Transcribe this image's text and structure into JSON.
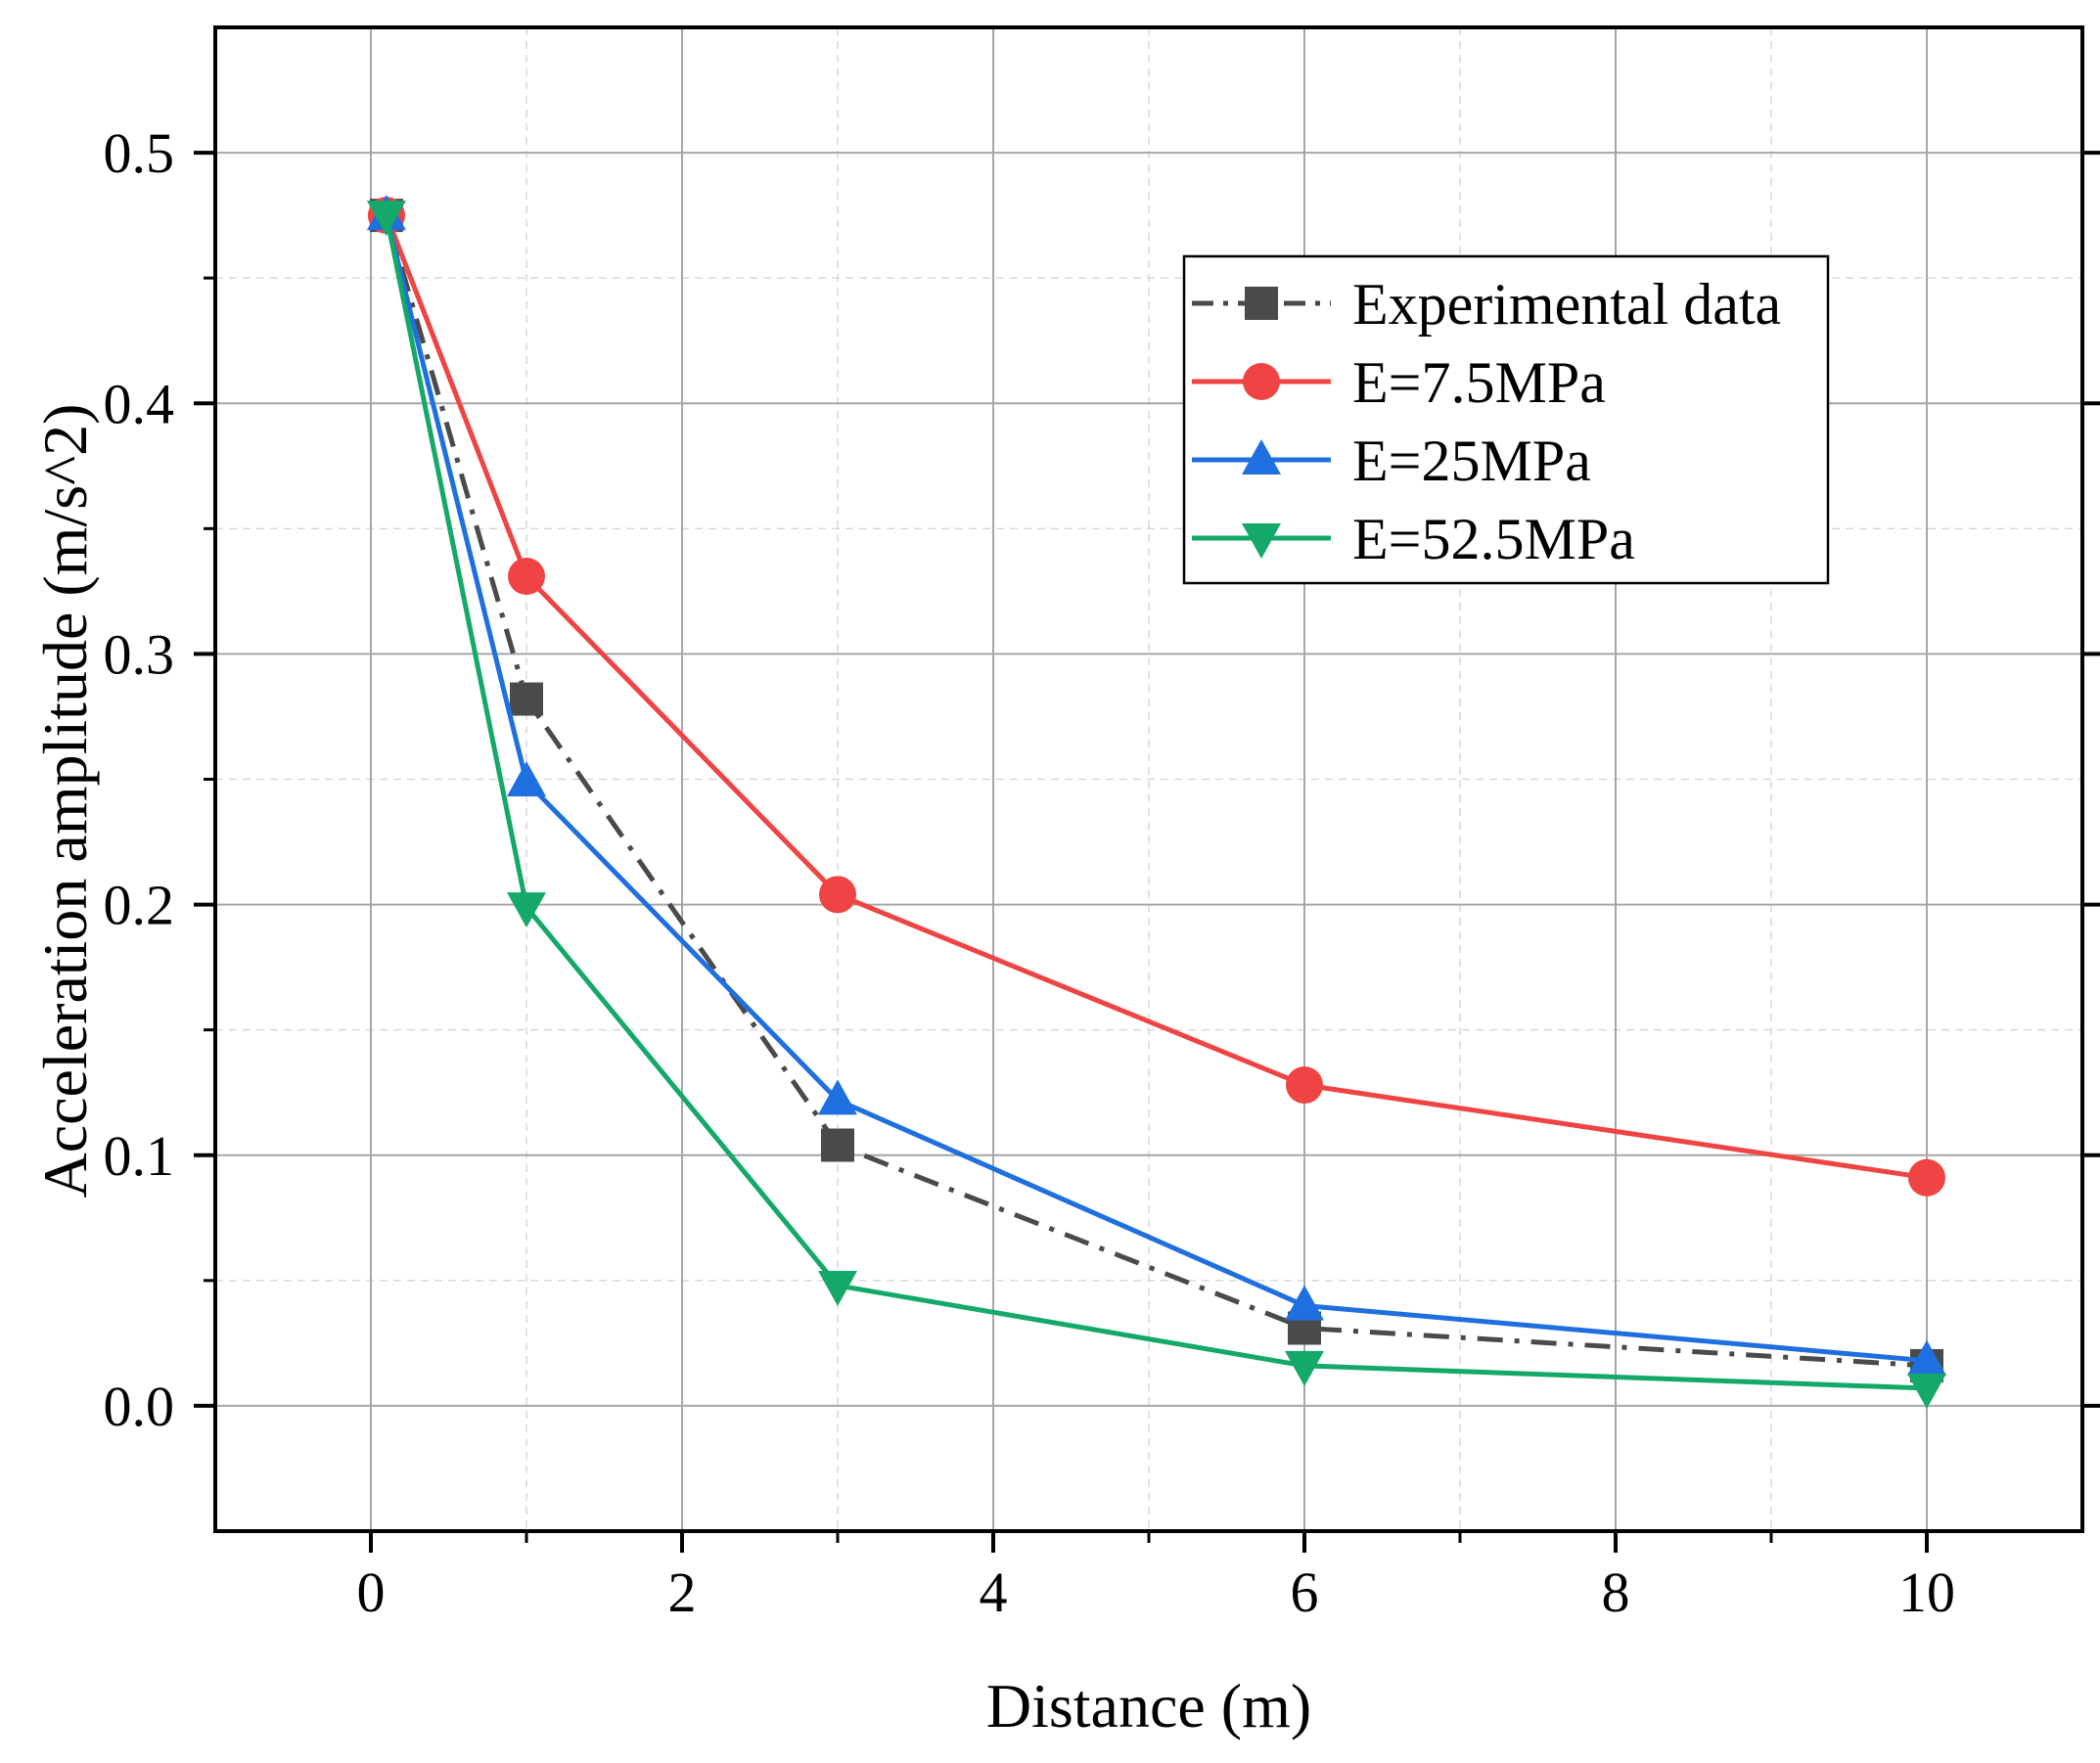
{
  "chart_data": {
    "type": "line",
    "title": "",
    "xlabel": "Distance (m)",
    "ylabel": "Acceleration amplitude (m/s^2)",
    "xlim": [
      -1,
      11
    ],
    "ylim": [
      -0.05,
      0.55
    ],
    "xticks": [
      0,
      2,
      4,
      6,
      8,
      10
    ],
    "xtick_labels": [
      "0",
      "2",
      "4",
      "6",
      "8",
      "10"
    ],
    "yticks": [
      0.0,
      0.1,
      0.2,
      0.3,
      0.4,
      0.5
    ],
    "ytick_labels": [
      "0.0",
      "0.1",
      "0.2",
      "0.3",
      "0.4",
      "0.5"
    ],
    "grid": true,
    "legend_position": "top-right",
    "series": [
      {
        "name": "Experimental data",
        "x": [
          0.1,
          1,
          3,
          6,
          10
        ],
        "y": [
          0.475,
          0.282,
          0.104,
          0.031,
          0.016
        ],
        "color": "#4a4a4a",
        "marker": "square",
        "line": "dashdot"
      },
      {
        "name": "E=7.5MPa",
        "x": [
          0.1,
          1,
          3,
          6,
          10
        ],
        "y": [
          0.475,
          0.331,
          0.204,
          0.128,
          0.091
        ],
        "color": "#f04343",
        "marker": "circle",
        "line": "solid"
      },
      {
        "name": "E=25MPa",
        "x": [
          0.1,
          1,
          3,
          6,
          10
        ],
        "y": [
          0.475,
          0.249,
          0.122,
          0.04,
          0.018
        ],
        "color": "#1f6fe0",
        "marker": "triangle-up",
        "line": "solid"
      },
      {
        "name": "E=52.5MPa",
        "x": [
          0.1,
          1,
          3,
          6,
          10
        ],
        "y": [
          0.475,
          0.199,
          0.048,
          0.016,
          0.007
        ],
        "color": "#14a869",
        "marker": "triangle-down",
        "line": "solid"
      }
    ]
  }
}
